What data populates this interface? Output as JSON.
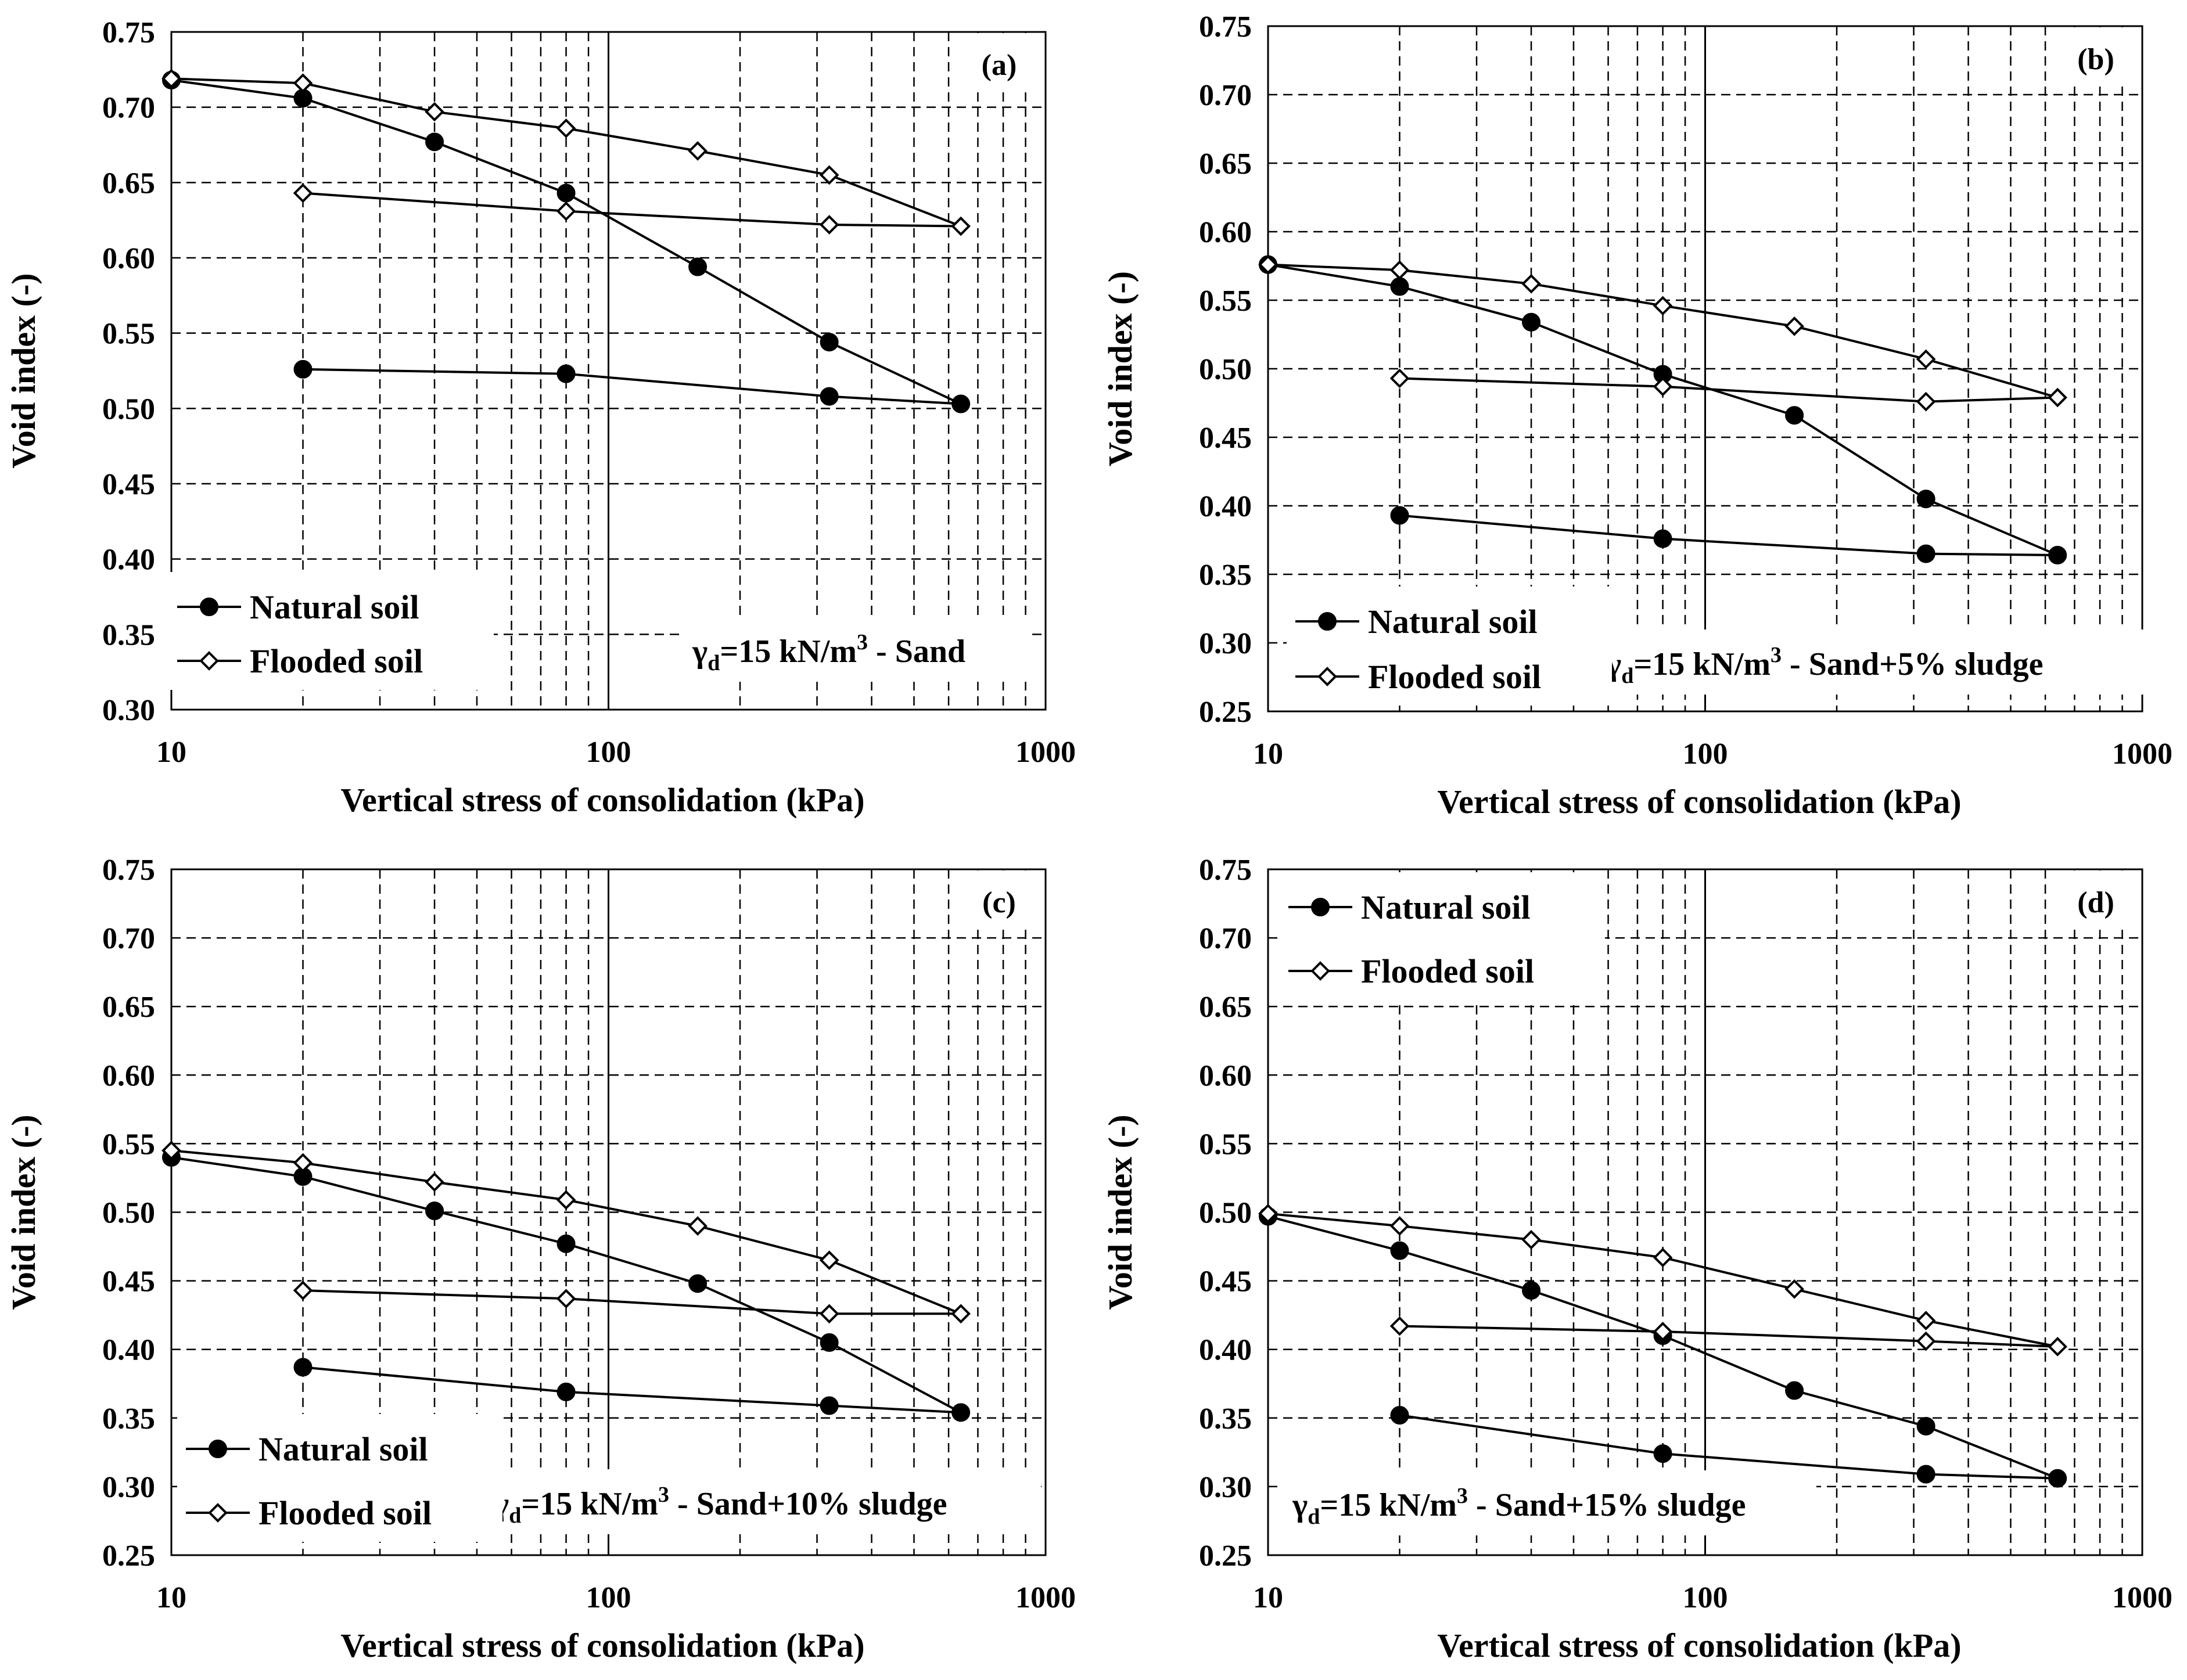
{
  "chart_data": [
    {
      "type": "line",
      "panel_label": "(a)",
      "annotation": {
        "gamma": "γ",
        "sub": "d",
        "pre": "=15 kN/m",
        "sup": "3",
        "post": " - Sand"
      },
      "xlabel": "Vertical stress of consolidation (kPa)",
      "ylabel": "Void index (-)",
      "xscale": "log",
      "xlim": [
        10,
        1000
      ],
      "ylim": [
        0.3,
        0.75
      ],
      "xticks": [
        "10",
        "100",
        "1000"
      ],
      "yticks": [
        "0.30",
        "0.35",
        "0.40",
        "0.45",
        "0.50",
        "0.55",
        "0.60",
        "0.65",
        "0.70",
        "0.75"
      ],
      "legend_position": "bottom-left",
      "series": [
        {
          "name": "Natural soil",
          "marker": "filled-circle",
          "x": [
            10,
            20,
            40,
            80,
            160,
            320,
            640,
            320,
            80,
            20
          ],
          "y": [
            0.718,
            0.706,
            0.677,
            0.643,
            0.594,
            0.544,
            0.503,
            0.508,
            0.523,
            0.526
          ]
        },
        {
          "name": "Flooded soil",
          "marker": "open-diamond",
          "x": [
            10,
            20,
            40,
            80,
            160,
            320,
            640,
            320,
            80,
            20
          ],
          "y": [
            0.719,
            0.716,
            0.697,
            0.686,
            0.671,
            0.655,
            0.621,
            0.622,
            0.631,
            0.643
          ]
        }
      ]
    },
    {
      "type": "line",
      "panel_label": "(b)",
      "annotation": {
        "gamma": "γ",
        "sub": "d",
        "pre": "=15 kN/m",
        "sup": "3",
        "post": " - Sand+5% sludge"
      },
      "xlabel": "Vertical stress of consolidation (kPa)",
      "ylabel": "Void index (-)",
      "xscale": "log",
      "xlim": [
        10,
        1000
      ],
      "ylim": [
        0.25,
        0.75
      ],
      "xticks": [
        "10",
        "100",
        "1000"
      ],
      "yticks": [
        "0.25",
        "0.30",
        "0.35",
        "0.40",
        "0.45",
        "0.50",
        "0.55",
        "0.60",
        "0.65",
        "0.70",
        "0.75"
      ],
      "legend_position": "bottom-left",
      "series": [
        {
          "name": "Natural soil",
          "marker": "filled-circle",
          "x": [
            10,
            20,
            40,
            80,
            160,
            320,
            640,
            320,
            80,
            20
          ],
          "y": [
            0.576,
            0.56,
            0.534,
            0.496,
            0.466,
            0.405,
            0.364,
            0.365,
            0.376,
            0.393
          ]
        },
        {
          "name": "Flooded soil",
          "marker": "open-diamond",
          "x": [
            10,
            20,
            40,
            80,
            160,
            320,
            640,
            320,
            80,
            20
          ],
          "y": [
            0.576,
            0.572,
            0.562,
            0.546,
            0.531,
            0.507,
            0.479,
            0.476,
            0.487,
            0.493
          ]
        }
      ]
    },
    {
      "type": "line",
      "panel_label": "(c)",
      "annotation": {
        "gamma": "γ",
        "sub": "d",
        "pre": "=15 kN/m",
        "sup": "3",
        "post": " - Sand+10% sludge"
      },
      "xlabel": "Vertical stress of consolidation (kPa)",
      "ylabel": "Void index (-)",
      "xscale": "log",
      "xlim": [
        10,
        1000
      ],
      "ylim": [
        0.25,
        0.75
      ],
      "xticks": [
        "10",
        "100",
        "1000"
      ],
      "yticks": [
        "0.25",
        "0.30",
        "0.35",
        "0.40",
        "0.45",
        "0.50",
        "0.55",
        "0.60",
        "0.65",
        "0.70",
        "0.75"
      ],
      "legend_position": "bottom-left",
      "series": [
        {
          "name": "Natural soil",
          "marker": "filled-circle",
          "x": [
            10,
            20,
            40,
            80,
            160,
            320,
            640,
            320,
            80,
            20
          ],
          "y": [
            0.54,
            0.526,
            0.501,
            0.477,
            0.448,
            0.405,
            0.354,
            0.359,
            0.369,
            0.387
          ]
        },
        {
          "name": "Flooded soil",
          "marker": "open-diamond",
          "x": [
            10,
            20,
            40,
            80,
            160,
            320,
            640,
            320,
            80,
            20
          ],
          "y": [
            0.545,
            0.536,
            0.522,
            0.509,
            0.49,
            0.465,
            0.426,
            0.426,
            0.437,
            0.443
          ]
        }
      ]
    },
    {
      "type": "line",
      "panel_label": "(d)",
      "annotation": {
        "gamma": "γ",
        "sub": "d",
        "pre": "=15 kN/m",
        "sup": "3",
        "post": " - Sand+15% sludge"
      },
      "xlabel": "Vertical stress of consolidation (kPa)",
      "ylabel": "Void index (-)",
      "xscale": "log",
      "xlim": [
        10,
        1000
      ],
      "ylim": [
        0.25,
        0.75
      ],
      "xticks": [
        "10",
        "100",
        "1000"
      ],
      "yticks": [
        "0.25",
        "0.30",
        "0.35",
        "0.40",
        "0.45",
        "0.50",
        "0.55",
        "0.60",
        "0.65",
        "0.70",
        "0.75"
      ],
      "legend_position": "top-left",
      "series": [
        {
          "name": "Natural soil",
          "marker": "filled-circle",
          "x": [
            10,
            20,
            40,
            80,
            160,
            320,
            640,
            320,
            80,
            20
          ],
          "y": [
            0.497,
            0.472,
            0.443,
            0.41,
            0.37,
            0.344,
            0.306,
            0.309,
            0.324,
            0.352
          ]
        },
        {
          "name": "Flooded soil",
          "marker": "open-diamond",
          "x": [
            10,
            20,
            40,
            80,
            160,
            320,
            640,
            320,
            80,
            20
          ],
          "y": [
            0.499,
            0.49,
            0.48,
            0.467,
            0.444,
            0.421,
            0.402,
            0.406,
            0.413,
            0.417
          ]
        }
      ]
    }
  ]
}
